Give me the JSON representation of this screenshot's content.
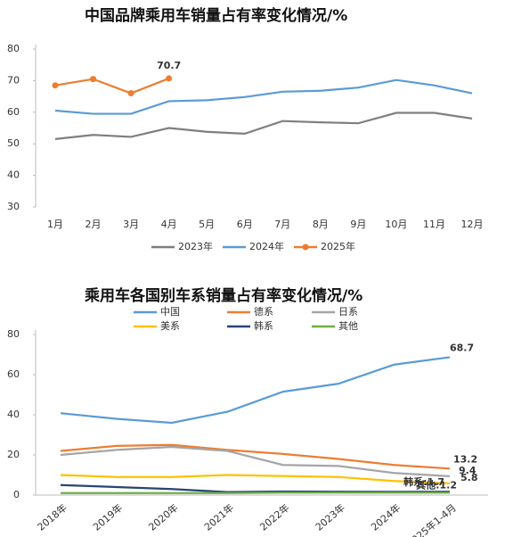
{
  "chart_data": [
    {
      "type": "line",
      "title": "中国品牌乘用车销量占有率变化情况/%",
      "categories": [
        "1月",
        "2月",
        "3月",
        "4月",
        "5月",
        "6月",
        "7月",
        "8月",
        "9月",
        "10月",
        "11月",
        "12月"
      ],
      "series": [
        {
          "name": "2023年",
          "color": "#7f7f7f",
          "values": [
            51.5,
            52.8,
            52.2,
            55,
            53.8,
            53.2,
            57.2,
            56.8,
            56.5,
            59.8,
            59.8,
            58
          ]
        },
        {
          "name": "2024年",
          "color": "#5b9bd5",
          "values": [
            60.5,
            59.5,
            59.5,
            63.5,
            63.8,
            64.8,
            66.5,
            66.8,
            67.8,
            70.2,
            68.5,
            66
          ]
        },
        {
          "name": "2025年",
          "color": "#ed7d31",
          "markers": true,
          "values": [
            68.5,
            70.5,
            66,
            70.7,
            null,
            null,
            null,
            null,
            null,
            null,
            null,
            null
          ],
          "value_labels": [
            null,
            null,
            null,
            "70.7",
            null,
            null,
            null,
            null,
            null,
            null,
            null,
            null
          ]
        }
      ],
      "ylim": [
        30,
        80
      ],
      "yticks": [
        30,
        40,
        50,
        60,
        70,
        80
      ],
      "legend": "bottom"
    },
    {
      "type": "line",
      "title": "乘用车各国别车系销量占有率变化情况/%",
      "categories": [
        "2018年",
        "2019年",
        "2020年",
        "2021年",
        "2022年",
        "2023年",
        "2024年",
        "2025年1-4月"
      ],
      "series": [
        {
          "name": "中国",
          "color": "#5b9bd5",
          "values": [
            40.8,
            38,
            36,
            41.5,
            51.5,
            55.5,
            65,
            68.7
          ],
          "value_labels": [
            null,
            null,
            null,
            null,
            null,
            null,
            null,
            "68.7"
          ]
        },
        {
          "name": "德系",
          "color": "#ed7d31",
          "values": [
            22,
            24.5,
            25,
            22.5,
            20.5,
            18,
            15,
            13.2
          ],
          "value_labels": [
            null,
            null,
            null,
            null,
            null,
            null,
            null,
            "13.2"
          ]
        },
        {
          "name": "日系",
          "color": "#a5a5a5",
          "values": [
            20,
            22.5,
            24,
            22,
            15,
            14.5,
            11,
            9.4
          ],
          "value_labels": [
            null,
            null,
            null,
            null,
            null,
            null,
            null,
            "9.4"
          ]
        },
        {
          "name": "美系",
          "color": "#ffc000",
          "values": [
            10,
            9,
            9,
            10,
            9.5,
            9,
            7,
            5.8
          ],
          "value_labels": [
            null,
            null,
            null,
            null,
            null,
            null,
            null,
            "5.8"
          ]
        },
        {
          "name": "韩系",
          "color": "#264478",
          "values": [
            5,
            4,
            3,
            1.5,
            1.8,
            1.7,
            1.6,
            1.7
          ],
          "value_labels": [
            null,
            null,
            null,
            null,
            null,
            null,
            null,
            "韩系:1.7"
          ]
        },
        {
          "name": "其他",
          "color": "#70ad47",
          "values": [
            1,
            1,
            1,
            1,
            1.2,
            1.2,
            1.2,
            1.2
          ],
          "value_labels": [
            null,
            null,
            null,
            null,
            null,
            null,
            null,
            "其他:1.2"
          ]
        }
      ],
      "ylim": [
        0,
        80
      ],
      "yticks": [
        0,
        20,
        40,
        60,
        80
      ],
      "legend": "top"
    }
  ]
}
